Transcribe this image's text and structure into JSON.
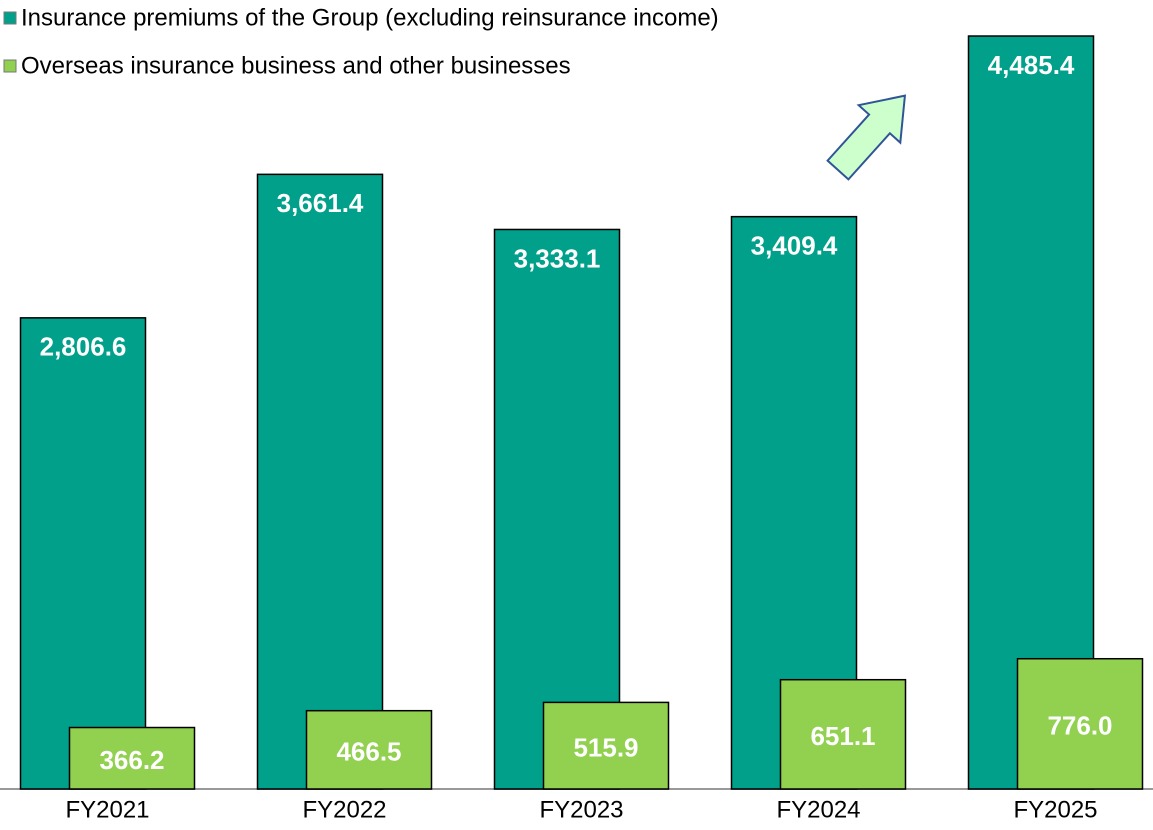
{
  "chart_data": {
    "type": "bar",
    "categories": [
      "FY2021",
      "FY2022",
      "FY2023",
      "FY2024",
      "FY2025"
    ],
    "series": [
      {
        "name": "Insurance premiums of the Group (excluding reinsurance income)",
        "color": "#00a08a",
        "values": [
          2806.6,
          3661.4,
          3333.1,
          3409.4,
          4485.4
        ],
        "value_labels": [
          "2,806.6",
          "3,661.4",
          "3,333.1",
          "3,409.4",
          "4,485.4"
        ]
      },
      {
        "name": "Overseas insurance business and other businesses",
        "color": "#92d050",
        "values": [
          366.2,
          466.5,
          515.9,
          651.1,
          776.0
        ],
        "value_labels": [
          "366.2",
          "466.5",
          "515.9",
          "651.1",
          "776.0"
        ]
      }
    ],
    "ylim": [
      0,
      4700
    ]
  }
}
